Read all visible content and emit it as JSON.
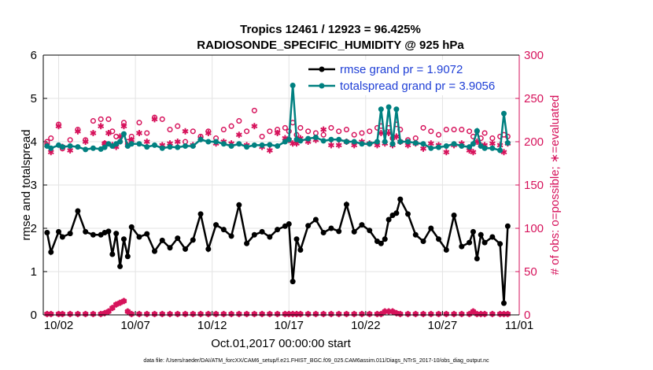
{
  "chart_data": {
    "type": "line",
    "title_line1": "Tropics 12461 / 12923 = 96.425%",
    "title_line2": "RADIOSONDE_SPECIFIC_HUMIDITY @ 925 hPa",
    "xlabel": "Oct.01,2017 00:00:00 start",
    "ylabel_left": "rmse and totalspread",
    "ylabel_right": "# of obs: o=possible; ∗=evaluated",
    "x_range": [
      1.0,
      32.0
    ],
    "ylim_left": [
      0,
      6
    ],
    "ylim_right": [
      0,
      300
    ],
    "x_ticks": [
      {
        "x": 2,
        "label": "10/02"
      },
      {
        "x": 7,
        "label": "10/07"
      },
      {
        "x": 12,
        "label": "10/12"
      },
      {
        "x": 17,
        "label": "10/17"
      },
      {
        "x": 22,
        "label": "10/22"
      },
      {
        "x": 27,
        "label": "10/27"
      },
      {
        "x": 32,
        "label": "11/01"
      }
    ],
    "y_ticks_left": [
      0,
      1,
      2,
      3,
      4,
      5,
      6
    ],
    "y_ticks_right": [
      0,
      50,
      100,
      150,
      200,
      250,
      300
    ],
    "legend": [
      {
        "name": "rmse grand pr = 1.9072",
        "color": "#000000"
      },
      {
        "name": "totalspread grand pr = 3.9056",
        "color": "#008080"
      }
    ],
    "colors": {
      "rmse": "#000000",
      "spread": "#008080",
      "obs": "#d6125b",
      "grid": "#e3e3e3"
    },
    "rmse": {
      "x": [
        1.25,
        1.5,
        2.0,
        2.25,
        2.75,
        3.25,
        3.75,
        4.25,
        4.75,
        5.0,
        5.25,
        5.5,
        5.75,
        6.0,
        6.25,
        6.5,
        6.75,
        7.25,
        7.75,
        8.25,
        8.75,
        9.25,
        9.75,
        10.25,
        10.75,
        11.25,
        11.75,
        12.25,
        12.75,
        13.25,
        13.75,
        14.25,
        14.75,
        15.25,
        15.75,
        16.25,
        16.75,
        17.0,
        17.25,
        17.5,
        17.75,
        18.25,
        18.75,
        19.25,
        19.75,
        20.25,
        20.75,
        21.25,
        21.75,
        22.25,
        22.75,
        23.0,
        23.25,
        23.5,
        23.75,
        24.0,
        24.25,
        24.75,
        25.25,
        25.75,
        26.25,
        26.75,
        27.25,
        27.75,
        28.25,
        28.75,
        29.0,
        29.25,
        29.5,
        29.75,
        30.25,
        30.75,
        31.0,
        31.25
      ],
      "y": [
        1.9,
        1.45,
        1.92,
        1.8,
        1.88,
        2.4,
        1.92,
        1.85,
        1.85,
        1.9,
        1.93,
        1.4,
        1.88,
        1.12,
        1.75,
        1.35,
        2.03,
        1.8,
        1.87,
        1.47,
        1.72,
        1.55,
        1.77,
        1.52,
        1.73,
        2.33,
        1.52,
        2.08,
        1.97,
        1.82,
        2.54,
        1.65,
        1.85,
        1.92,
        1.8,
        1.97,
        2.05,
        2.1,
        0.77,
        1.75,
        1.5,
        2.06,
        2.2,
        1.9,
        2.0,
        1.93,
        2.55,
        1.92,
        2.08,
        1.95,
        1.7,
        1.65,
        1.75,
        2.2,
        2.3,
        2.35,
        2.67,
        2.33,
        1.85,
        1.7,
        2.0,
        1.75,
        1.5,
        2.3,
        1.58,
        1.67,
        1.92,
        1.3,
        1.85,
        1.67,
        1.8,
        1.64,
        0.27,
        2.05
      ]
    },
    "spread": {
      "x": [
        1.25,
        1.5,
        2.0,
        2.25,
        2.75,
        3.25,
        3.75,
        4.25,
        4.75,
        5.0,
        5.25,
        5.5,
        5.75,
        6.0,
        6.25,
        6.5,
        6.75,
        7.25,
        7.75,
        8.25,
        8.75,
        9.25,
        9.75,
        10.25,
        10.75,
        11.25,
        11.75,
        12.25,
        12.75,
        13.25,
        13.75,
        14.25,
        14.75,
        15.25,
        15.75,
        16.25,
        16.75,
        17.0,
        17.25,
        17.5,
        17.75,
        18.25,
        18.75,
        19.25,
        19.75,
        20.25,
        20.75,
        21.25,
        21.75,
        22.25,
        22.75,
        23.0,
        23.25,
        23.5,
        23.75,
        24.0,
        24.25,
        24.75,
        25.25,
        25.75,
        26.25,
        26.75,
        27.25,
        27.75,
        28.25,
        28.75,
        29.0,
        29.25,
        29.5,
        29.75,
        30.25,
        30.75,
        31.0,
        31.25
      ],
      "y": [
        3.9,
        3.85,
        3.92,
        3.88,
        3.9,
        3.88,
        3.82,
        3.85,
        3.83,
        3.87,
        3.95,
        3.9,
        3.95,
        4.0,
        4.18,
        3.9,
        3.95,
        3.95,
        3.88,
        3.92,
        3.85,
        3.88,
        3.87,
        3.9,
        3.9,
        4.05,
        4.0,
        4.0,
        3.95,
        3.9,
        3.95,
        3.88,
        3.92,
        3.92,
        3.93,
        3.9,
        4.0,
        4.05,
        5.3,
        4.05,
        4.02,
        4.07,
        4.1,
        4.02,
        4.05,
        4.05,
        4.0,
        4.0,
        3.95,
        3.95,
        4.0,
        4.75,
        4.0,
        4.8,
        3.95,
        4.75,
        4.0,
        4.0,
        3.97,
        3.95,
        3.85,
        3.87,
        3.9,
        3.95,
        3.9,
        3.88,
        3.95,
        4.25,
        3.9,
        3.85,
        3.85,
        3.8,
        4.65,
        3.97
      ]
    },
    "obs_possible": {
      "x": [
        1.25,
        1.5,
        2.0,
        2.25,
        2.75,
        3.25,
        3.75,
        4.25,
        4.75,
        5.0,
        5.25,
        5.5,
        5.75,
        6.0,
        6.25,
        6.5,
        6.75,
        7.25,
        7.75,
        8.25,
        8.75,
        9.25,
        9.75,
        10.25,
        10.75,
        11.25,
        11.75,
        12.25,
        12.75,
        13.25,
        13.75,
        14.25,
        14.75,
        15.25,
        15.75,
        16.25,
        16.75,
        17.0,
        17.25,
        17.5,
        17.75,
        18.25,
        18.75,
        19.25,
        19.75,
        20.25,
        20.75,
        21.25,
        21.75,
        22.25,
        22.75,
        23.0,
        23.25,
        23.5,
        23.75,
        24.0,
        24.25,
        24.75,
        25.25,
        25.75,
        26.25,
        26.75,
        27.25,
        27.75,
        28.25,
        28.75,
        29.0,
        29.25,
        29.5,
        29.75,
        30.25,
        30.75,
        31.0,
        31.25
      ],
      "y": [
        200,
        204,
        220,
        192,
        202,
        214,
        202,
        224,
        226,
        198,
        226,
        212,
        206,
        200,
        222,
        200,
        206,
        222,
        210,
        228,
        226,
        214,
        218,
        200,
        212,
        206,
        212,
        204,
        214,
        218,
        224,
        212,
        236,
        206,
        212,
        214,
        216,
        212,
        222,
        208,
        216,
        212,
        210,
        208,
        216,
        212,
        214,
        208,
        210,
        212,
        216,
        218,
        210,
        216,
        204,
        220,
        214,
        202,
        204,
        216,
        212,
        208,
        214,
        214,
        214,
        212,
        206,
        212,
        204,
        210,
        204,
        206,
        208,
        206
      ]
    },
    "obs_evaluated": {
      "x": [
        1.25,
        1.5,
        2.0,
        2.25,
        2.75,
        3.25,
        3.75,
        4.25,
        4.75,
        5.0,
        5.25,
        5.5,
        5.75,
        6.0,
        6.25,
        6.5,
        6.75,
        7.25,
        7.75,
        8.25,
        8.75,
        9.25,
        9.75,
        10.25,
        10.75,
        11.25,
        11.75,
        12.25,
        12.75,
        13.25,
        13.75,
        14.25,
        14.75,
        15.25,
        15.75,
        16.25,
        16.75,
        17.0,
        17.25,
        17.5,
        17.75,
        18.25,
        18.75,
        19.25,
        19.75,
        20.25,
        20.75,
        21.25,
        21.75,
        22.25,
        22.75,
        23.0,
        23.25,
        23.5,
        23.75,
        24.0,
        24.25,
        24.75,
        25.25,
        25.75,
        26.25,
        26.75,
        27.25,
        27.75,
        28.25,
        28.75,
        29.0,
        29.25,
        29.5,
        29.75,
        30.25,
        30.75,
        31.0,
        31.25
      ],
      "y": [
        196,
        188,
        218,
        194,
        190,
        212,
        200,
        210,
        218,
        198,
        210,
        196,
        194,
        206,
        218,
        196,
        202,
        210,
        200,
        226,
        196,
        198,
        200,
        212,
        196,
        204,
        210,
        198,
        200,
        198,
        208,
        196,
        218,
        194,
        190,
        210,
        204,
        202,
        198,
        198,
        204,
        200,
        202,
        214,
        196,
        196,
        200,
        196,
        200,
        198,
        196,
        210,
        198,
        210,
        196,
        206,
        200,
        196,
        198,
        192,
        198,
        196,
        188,
        196,
        198,
        190,
        188,
        200,
        196,
        196,
        198,
        196,
        188,
        198
      ]
    },
    "obs_counts_bottom": {
      "x": [
        1.25,
        1.5,
        2.0,
        2.25,
        2.75,
        3.25,
        3.75,
        4.25,
        4.75,
        5.0,
        5.25,
        5.5,
        5.75,
        6.0,
        6.25,
        6.5,
        6.75,
        7.25,
        7.75,
        8.25,
        8.75,
        9.25,
        9.75,
        10.25,
        10.75,
        11.25,
        11.75,
        12.25,
        12.75,
        13.25,
        13.75,
        14.25,
        14.75,
        15.25,
        15.75,
        16.25,
        16.75,
        17.0,
        17.25,
        17.5,
        17.75,
        18.25,
        18.75,
        19.25,
        19.75,
        20.25,
        20.75,
        21.25,
        21.75,
        22.25,
        22.75,
        23.0,
        23.25,
        23.5,
        23.75,
        24.0,
        24.25,
        24.75,
        25.25,
        25.75,
        26.25,
        26.75,
        27.25,
        27.75,
        28.25,
        28.75,
        29.0,
        29.25,
        29.5,
        29.75,
        30.25,
        30.75,
        31.0,
        31.25
      ],
      "y": [
        1,
        1,
        1,
        1,
        1,
        1,
        1,
        1,
        1,
        2,
        4,
        8,
        12,
        14,
        16,
        4,
        1,
        1,
        1,
        1,
        1,
        1,
        1,
        1,
        1,
        1,
        1,
        1,
        1,
        1,
        1,
        1,
        1,
        1,
        1,
        1,
        1,
        1,
        1,
        1,
        1,
        1,
        1,
        1,
        1,
        1,
        1,
        1,
        1,
        1,
        1,
        1,
        4,
        4,
        4,
        2,
        1,
        1,
        1,
        1,
        1,
        1,
        1,
        1,
        1,
        1,
        4,
        1,
        1,
        1,
        1,
        1,
        1,
        1
      ]
    },
    "footnote": "data file: /Users/raeder/DAI/ATM_forcXX/CAM6_setup/f.e21.FHIST_BGC.f09_025.CAM6assim.011/Diags_NTrS_2017-10/obs_diag_output.nc"
  }
}
